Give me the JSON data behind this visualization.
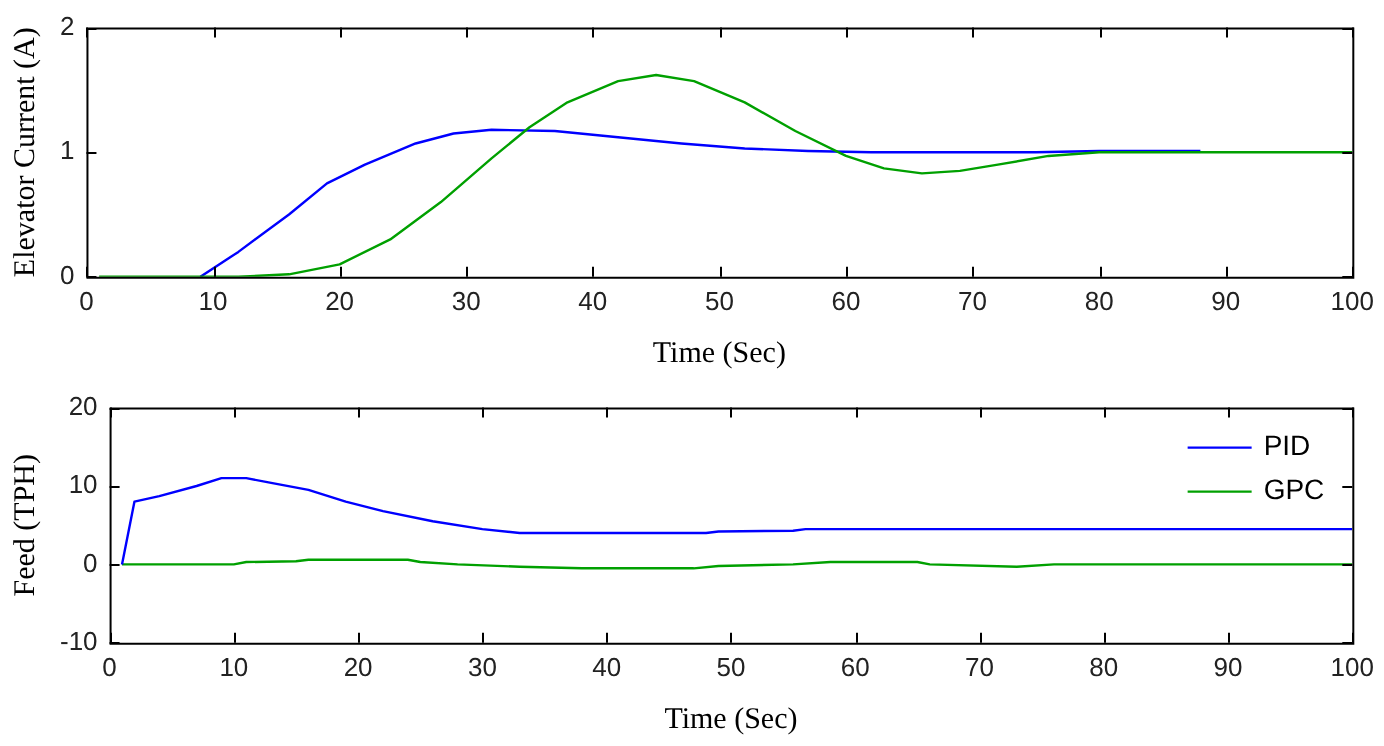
{
  "chart_data": [
    {
      "type": "line",
      "xlabel": "Time (Sec)",
      "ylabel": "Elevator Current (A)",
      "xlim": [
        0,
        100
      ],
      "xticks": [
        0,
        10,
        20,
        30,
        40,
        50,
        60,
        70,
        80,
        90,
        100
      ],
      "ylim": [
        0,
        2
      ],
      "yticks": [
        0,
        1,
        2
      ],
      "marker": "none",
      "line_style": "solid",
      "legend": false,
      "grid": false,
      "series": [
        {
          "color": "#00a000",
          "x": [
            1,
            12,
            16,
            20,
            24,
            28,
            32,
            35,
            38,
            42,
            45,
            48,
            52,
            56,
            60,
            63,
            66,
            69,
            72,
            76,
            80,
            100
          ],
          "values": [
            0,
            0,
            0.02,
            0.1,
            0.3,
            0.6,
            0.95,
            1.2,
            1.4,
            1.57,
            1.62,
            1.57,
            1.4,
            1.17,
            0.97,
            0.87,
            0.83,
            0.85,
            0.9,
            0.97,
            1,
            1
          ]
        },
        {
          "color": "#0000ff",
          "x": [
            9,
            12,
            16,
            19,
            22,
            26,
            29,
            32,
            37,
            42,
            47,
            52,
            57,
            62,
            75,
            80,
            88
          ],
          "values": [
            0,
            0.2,
            0.5,
            0.75,
            0.9,
            1.07,
            1.15,
            1.18,
            1.17,
            1.12,
            1.07,
            1.03,
            1.01,
            1,
            1,
            1.01,
            1.01
          ]
        }
      ]
    },
    {
      "type": "line",
      "xlabel": "Time (Sec)",
      "ylabel": "Feed (TPH)",
      "xlim": [
        0,
        100
      ],
      "xticks": [
        0,
        10,
        20,
        30,
        40,
        50,
        60,
        70,
        80,
        90,
        100
      ],
      "ylim": [
        -10,
        20
      ],
      "yticks": [
        -10,
        0,
        10,
        20
      ],
      "marker": "none",
      "line_style": "solid",
      "legend": "top right",
      "grid": false,
      "series": [
        {
          "name": "PID",
          "color": "#0000ff",
          "x": [
            1,
            2,
            4,
            7,
            9,
            11,
            13,
            16,
            19,
            22,
            26,
            30,
            33,
            48,
            49,
            55,
            56,
            100
          ],
          "values": [
            0,
            8,
            8.7,
            10,
            11,
            11,
            10.4,
            9.5,
            8,
            6.8,
            5.5,
            4.5,
            4,
            4,
            4.2,
            4.3,
            4.5,
            4.5
          ]
        },
        {
          "name": "GPC",
          "color": "#00a000",
          "x": [
            1,
            10,
            11,
            15,
            16,
            24,
            25,
            28,
            33,
            38,
            47,
            49,
            55,
            58,
            65,
            66,
            73,
            76,
            100
          ],
          "values": [
            0,
            0,
            0.3,
            0.4,
            0.6,
            0.6,
            0.3,
            0,
            -0.3,
            -0.5,
            -0.5,
            -0.2,
            0,
            0.3,
            0.3,
            0,
            -0.3,
            0,
            0
          ]
        }
      ]
    }
  ]
}
